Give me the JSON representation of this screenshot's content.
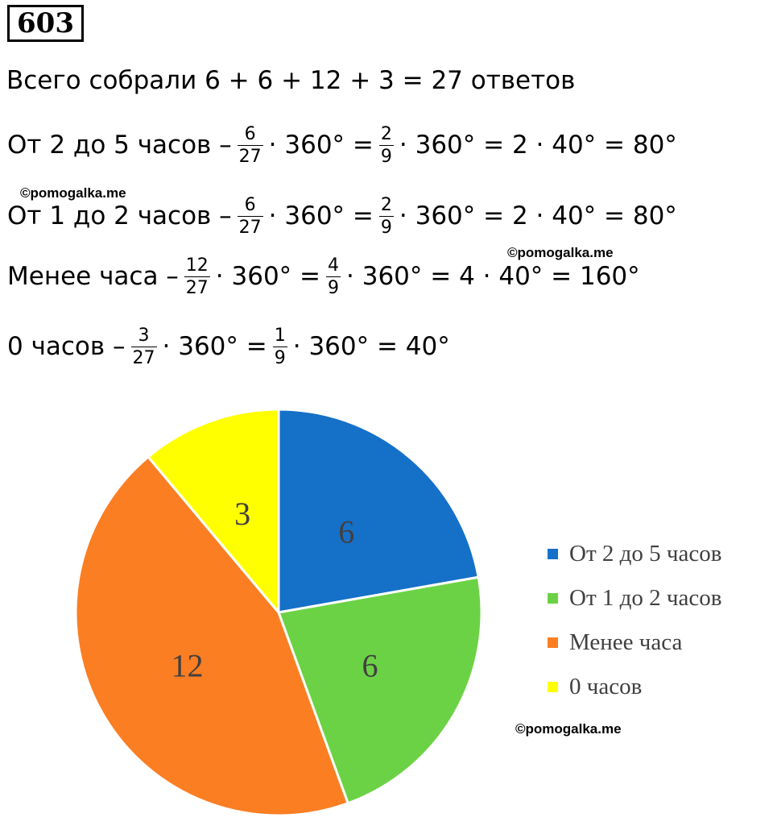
{
  "task_number": "603",
  "total_line": "Всего собрали 6 + 6 + 12 + 3 = 27 ответов",
  "calculations": [
    {
      "label": "От 2 до 5 часов –",
      "f1": [
        "6",
        "27"
      ],
      "t1": "· 360° =",
      "f2": [
        "2",
        "9"
      ],
      "t2": "· 360° = 2 · 40° = 80°"
    },
    {
      "label": "От 1 до 2 часов –",
      "f1": [
        "6",
        "27"
      ],
      "t1": "· 360° =",
      "f2": [
        "2",
        "9"
      ],
      "t2": "· 360° = 2 · 40° = 80°"
    },
    {
      "label": "Менее часа –",
      "f1": [
        "12",
        "27"
      ],
      "t1": "· 360° =",
      "f2": [
        "4",
        "9"
      ],
      "t2": "· 360° = 4 · 40° = 160°"
    },
    {
      "label": "0 часов –",
      "f1": [
        "3",
        "27"
      ],
      "t1": "· 360° =",
      "f2": [
        "1",
        "9"
      ],
      "t2": "· 360° = 40°"
    }
  ],
  "watermarks": [
    "©pomogalka.me",
    "©pomogalka.me",
    "©pomogalka.me"
  ],
  "chart_data": {
    "type": "pie",
    "categories": [
      "От 2 до 5 часов",
      "От 1 до 2 часов",
      "Менее часа",
      "0 часов"
    ],
    "values": [
      6,
      6,
      12,
      3
    ],
    "data_labels": [
      "6",
      "6",
      "12",
      "3"
    ],
    "colors": [
      "#1570c8",
      "#6cd245",
      "#fb7e23",
      "#ffff00"
    ],
    "legend": "right",
    "start": "12 o'clock, clockwise"
  }
}
